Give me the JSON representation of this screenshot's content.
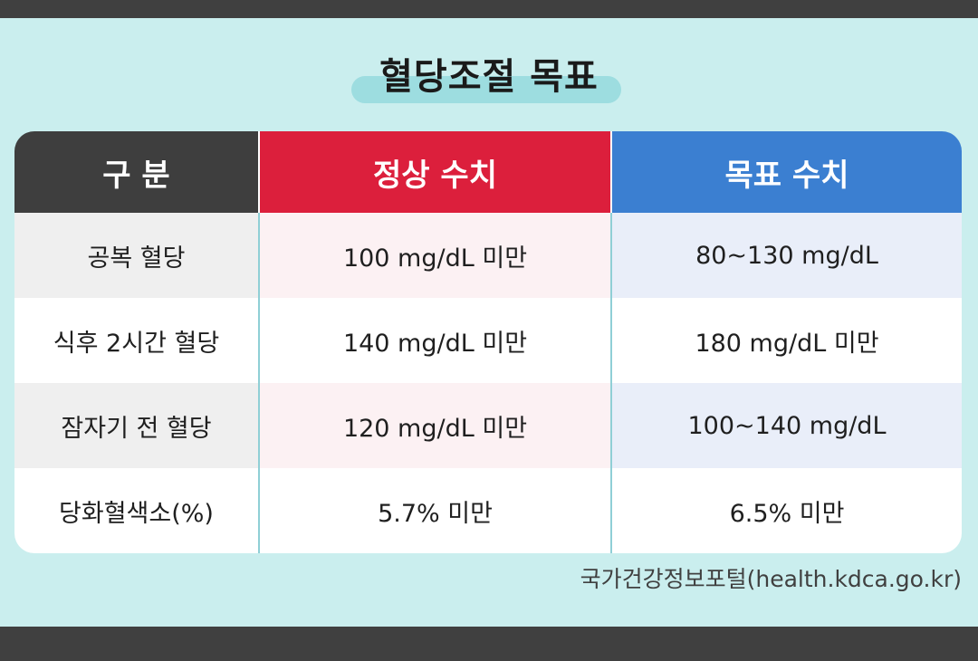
{
  "title": "혈당조절 목표",
  "table": {
    "headers": [
      "구 분",
      "정상 수치",
      "목표 수치"
    ],
    "rows": [
      [
        "공복 혈당",
        "100 mg/dL 미만",
        "80~130 mg/dL"
      ],
      [
        "식후 2시간 혈당",
        "140 mg/dL 미만",
        "180 mg/dL 미만"
      ],
      [
        "잠자기 전 혈당",
        "120 mg/dL 미만",
        "100~140 mg/dL"
      ],
      [
        "당화혈색소(%)",
        "5.7% 미만",
        "6.5% 미만"
      ]
    ]
  },
  "source": "국가건강정보포털(health.kdca.go.kr)",
  "colors": {
    "category_header": "#3e3e3e",
    "normal_header": "#dc1f3c",
    "target_header": "#3b7fd1",
    "background": "#caeeee"
  }
}
